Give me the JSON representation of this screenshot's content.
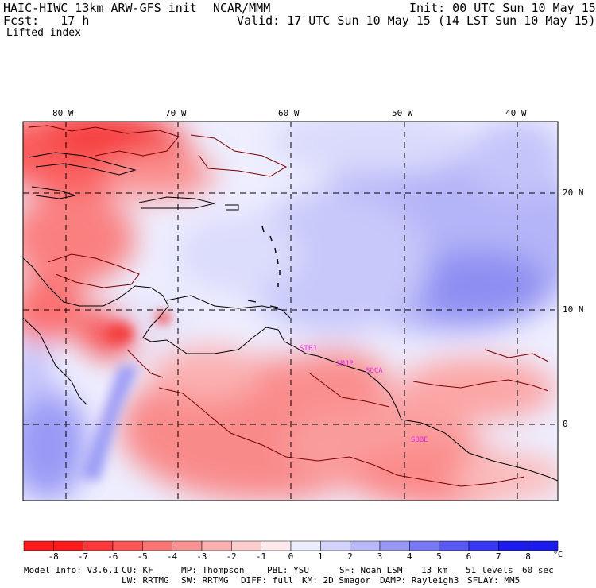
{
  "header": {
    "model": "HAIC-HIWC 13km ARW-GFS init",
    "source": "NCAR/MMM",
    "init": "Init: 00 UTC Sun 10 May 15",
    "fcst": "Fcst:   17 h",
    "valid": "Valid: 17 UTC Sun 10 May 15 (14 LST Sun 10 May 15)",
    "field": "Lifted index"
  },
  "map": {
    "lon_labels": [
      "80 W",
      "70 W",
      "60 W",
      "50 W",
      "40 W"
    ],
    "lat_labels": [
      "20 N",
      "10 N",
      "0"
    ],
    "stations": [
      "SIPJ",
      "SMJP",
      "SOCA",
      "SBBE"
    ],
    "colors": {
      "station": "#e030e0",
      "coast": "#000000",
      "contour": "#7a0000"
    }
  },
  "colorbar": {
    "levels": [
      "-8",
      "-7",
      "-6",
      "-5",
      "-4",
      "-3",
      "-2",
      "-1",
      "0",
      "1",
      "2",
      "3",
      "4",
      "5",
      "6",
      "7",
      "8"
    ],
    "unit": "°C",
    "colors": [
      "#ff1a1a",
      "#fe3838",
      "#fd5656",
      "#fb7474",
      "#fa9292",
      "#fcb0b0",
      "#fdcccc",
      "#feeaea",
      "#ffffff",
      "#ececff",
      "#d2d2fc",
      "#b8b8fa",
      "#9898f8",
      "#7878f6",
      "#5858f5",
      "#3838f3",
      "#1a1aef"
    ]
  },
  "footer": {
    "line1": [
      "Model Info: V3.6.1",
      "CU: KF",
      "MP: Thompson",
      "PBL: YSU",
      "SF: Noah LSM",
      "13 km",
      "51 levels",
      "60 sec"
    ],
    "line2": [
      "LW: RRTMG",
      "SW: RRTMG",
      "DIFF: full",
      "KM: 2D Smagor",
      "DAMP: Rayleigh3",
      "SFLAY: MM5"
    ]
  }
}
